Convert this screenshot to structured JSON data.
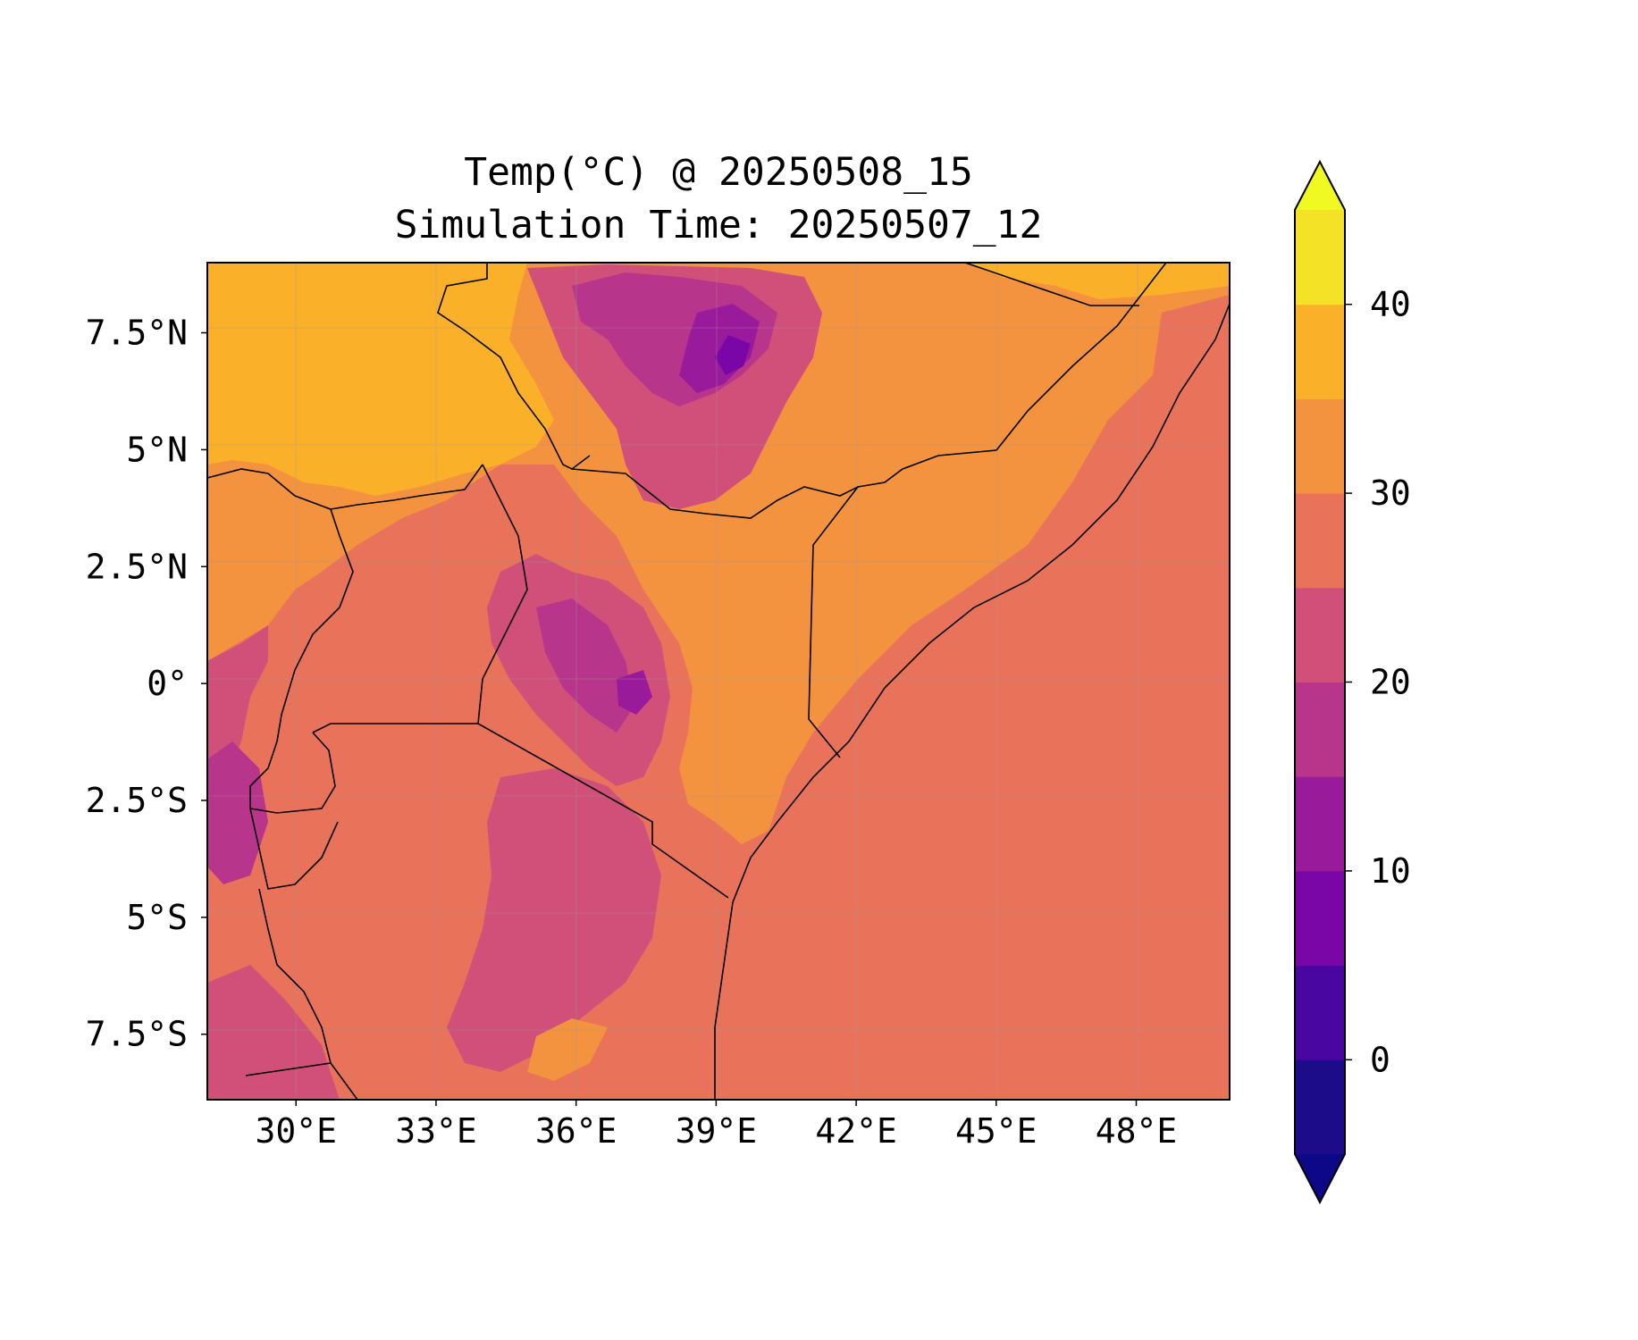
{
  "figure": {
    "title_line1": "Temp(°C) @ 20250508_15",
    "title_line2": "Simulation Time: 20250507_12"
  },
  "chart_data": {
    "type": "heatmap",
    "title": "Temp(°C) @ 20250508_15\nSimulation Time: 20250507_12",
    "variable_unit": "°C",
    "x_ticks": [
      {
        "value": 30,
        "label": "30°E"
      },
      {
        "value": 33,
        "label": "33°E"
      },
      {
        "value": 36,
        "label": "36°E"
      },
      {
        "value": 39,
        "label": "39°E"
      },
      {
        "value": 42,
        "label": "42°E"
      },
      {
        "value": 45,
        "label": "45°E"
      },
      {
        "value": 48,
        "label": "48°E"
      }
    ],
    "y_ticks": [
      {
        "value": 7.5,
        "label": "7.5°N"
      },
      {
        "value": 5,
        "label": "5°N"
      },
      {
        "value": 2.5,
        "label": "2.5°N"
      },
      {
        "value": 0,
        "label": "0°"
      },
      {
        "value": -2.5,
        "label": "2.5°S"
      },
      {
        "value": -5,
        "label": "5°S"
      },
      {
        "value": -7.5,
        "label": "7.5°S"
      }
    ],
    "xlim": [
      28.1,
      50.0
    ],
    "ylim": [
      -8.9,
      9.0
    ],
    "grid": true,
    "colorbar": {
      "levels": [
        -5,
        0,
        5,
        10,
        15,
        20,
        25,
        30,
        35,
        40,
        45
      ],
      "colors": [
        "#1c0c8a",
        "#4a06a0",
        "#7a06a8",
        "#9a1a9c",
        "#b8358c",
        "#d0507a",
        "#e8735a",
        "#f3923f",
        "#fbb02a",
        "#f4e226"
      ],
      "under_color": "#0d0887",
      "over_color": "#f0f921",
      "extend": "both",
      "ticks": [
        {
          "value": 0,
          "label": "0"
        },
        {
          "value": 10,
          "label": "10"
        },
        {
          "value": 20,
          "label": "20"
        },
        {
          "value": 30,
          "label": "30"
        },
        {
          "value": 40,
          "label": "40"
        }
      ]
    },
    "palette": {
      "background_temp_color": "#e8735a",
      "hot_north": "#fbb02a",
      "warm": "#f3923f",
      "cool_highland": "#d0507a",
      "cold_highland": "#9a1a9c"
    }
  }
}
